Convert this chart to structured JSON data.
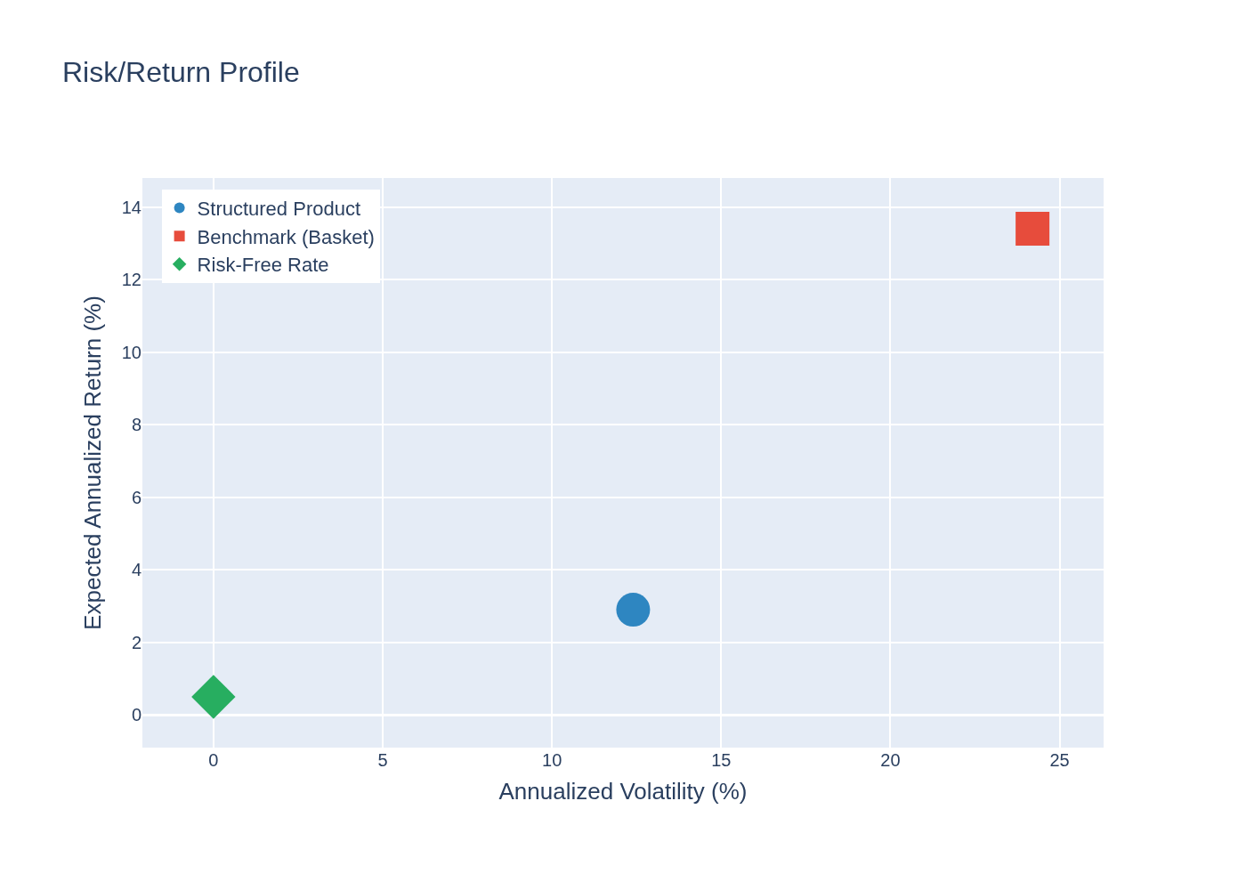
{
  "chart_data": {
    "type": "scatter",
    "title": "Risk/Return Profile",
    "xlabel": "Annualized Volatility (%)",
    "ylabel": "Expected Annualized Return (%)",
    "series": [
      {
        "name": "Structured Product",
        "color": "#2e86c1",
        "marker": "circle",
        "x": [
          12.4
        ],
        "values": [
          2.9
        ]
      },
      {
        "name": "Benchmark (Basket)",
        "color": "#e74c3c",
        "marker": "square",
        "x": [
          24.2
        ],
        "values": [
          13.4
        ]
      },
      {
        "name": "Risk-Free Rate",
        "color": "#27ae60",
        "marker": "diamond",
        "x": [
          0
        ],
        "values": [
          0.5
        ]
      }
    ],
    "xlim": [
      -2.1,
      26.3
    ],
    "ylim": [
      -0.9,
      14.8
    ],
    "xticks": [
      0,
      5,
      10,
      15,
      20,
      25
    ],
    "yticks": [
      0,
      2,
      4,
      6,
      8,
      10,
      12,
      14
    ],
    "grid": true,
    "legend": "top left"
  }
}
